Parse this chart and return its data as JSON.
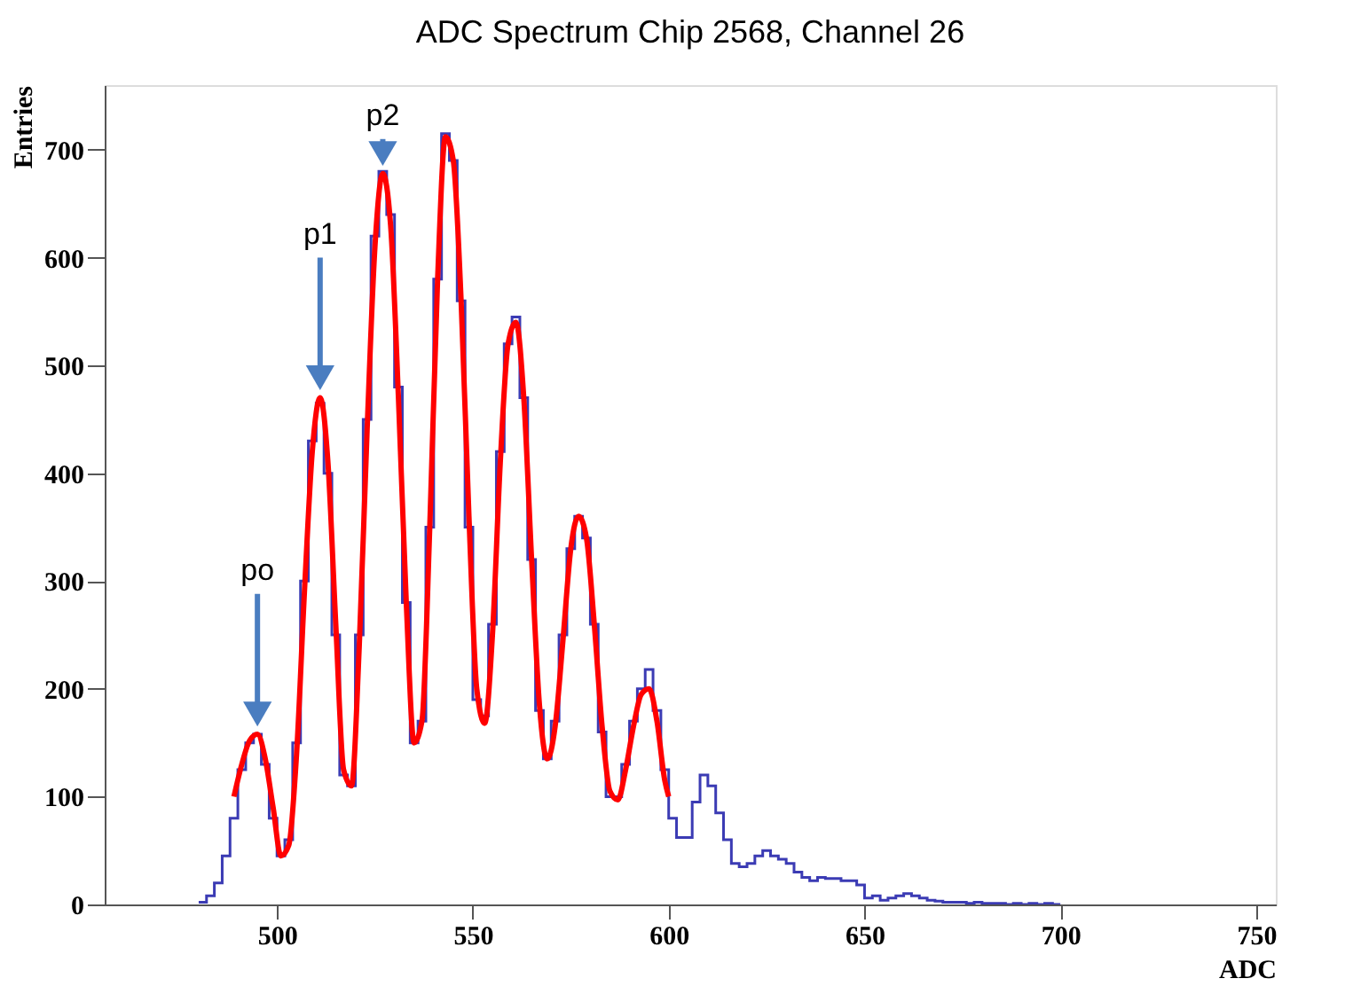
{
  "chart_data": {
    "type": "histogram",
    "title": "ADC Spectrum Chip 2568, Channel 26",
    "xlabel": "ADC",
    "ylabel": "Entries",
    "xlim": [
      456,
      755
    ],
    "ylim": [
      0,
      760
    ],
    "xticks": [
      500,
      550,
      600,
      650,
      700,
      750
    ],
    "yticks": [
      0,
      100,
      200,
      300,
      400,
      500,
      600,
      700
    ],
    "grid": false,
    "series": [
      {
        "color": "#3b3bb4",
        "bins": [
          480,
          482,
          484,
          486,
          488,
          490,
          492,
          494,
          496,
          498,
          500,
          502,
          504,
          506,
          508,
          510,
          512,
          514,
          516,
          518,
          520,
          522,
          524,
          526,
          528,
          530,
          532,
          534,
          536,
          538,
          540,
          542,
          544,
          546,
          548,
          550,
          552,
          554,
          556,
          558,
          560,
          562,
          564,
          566,
          568,
          570,
          572,
          574,
          576,
          578,
          580,
          582,
          584,
          586,
          588,
          590,
          592,
          594,
          596,
          598,
          600,
          602,
          604,
          606,
          608,
          610,
          612,
          614,
          616,
          618,
          620,
          622,
          624,
          626,
          628,
          630,
          632,
          634,
          636,
          638,
          640,
          642,
          644,
          646,
          648,
          650,
          652,
          654,
          656,
          658,
          660,
          662,
          664,
          666,
          668,
          670,
          672,
          674,
          676,
          678,
          680,
          682,
          684,
          686,
          688,
          690,
          692,
          694,
          696,
          698,
          700
        ],
        "values": [
          2,
          8,
          20,
          45,
          80,
          125,
          150,
          158,
          130,
          80,
          45,
          60,
          150,
          300,
          430,
          465,
          400,
          250,
          120,
          110,
          250,
          450,
          620,
          680,
          640,
          480,
          280,
          150,
          170,
          350,
          580,
          715,
          690,
          560,
          350,
          190,
          175,
          260,
          420,
          520,
          545,
          470,
          320,
          180,
          135,
          170,
          250,
          330,
          360,
          340,
          260,
          160,
          100,
          100,
          130,
          170,
          200,
          218,
          180,
          125,
          80,
          62,
          62,
          95,
          120,
          110,
          85,
          60,
          38,
          35,
          38,
          45,
          50,
          45,
          42,
          38,
          30,
          25,
          22,
          25,
          24,
          24,
          22,
          22,
          18,
          6,
          8,
          4,
          6,
          8,
          10,
          8,
          6,
          4,
          3,
          2,
          2,
          2,
          1,
          2,
          1,
          1,
          1,
          0,
          1,
          0,
          1,
          0,
          1,
          0
        ]
      },
      {
        "type": "line",
        "color": "#ff0000",
        "x": [
          489,
          491,
          493,
          495,
          497,
          499,
          501,
          503,
          505,
          507,
          509,
          511,
          513,
          515,
          517,
          519,
          521,
          523,
          525,
          527,
          529,
          531,
          533,
          535,
          537,
          539,
          541,
          543,
          545,
          547,
          549,
          551,
          553,
          555,
          557,
          559,
          561,
          563,
          565,
          567,
          569,
          571,
          573,
          575,
          577,
          579,
          581,
          583,
          585,
          587,
          589,
          591,
          593,
          595,
          597,
          599,
          600
        ],
        "values": [
          100,
          130,
          152,
          158,
          135,
          90,
          45,
          55,
          140,
          290,
          420,
          470,
          410,
          260,
          125,
          110,
          240,
          440,
          610,
          678,
          630,
          470,
          280,
          150,
          170,
          350,
          580,
          712,
          690,
          560,
          360,
          200,
          168,
          250,
          410,
          520,
          540,
          470,
          320,
          185,
          135,
          165,
          245,
          330,
          360,
          340,
          260,
          165,
          105,
          97,
          125,
          165,
          195,
          200,
          170,
          115,
          100
        ]
      }
    ],
    "annotations": [
      {
        "text": "po",
        "x": 495,
        "y": 158
      },
      {
        "text": "p1",
        "x": 511,
        "y": 470
      },
      {
        "text": "p2",
        "x": 527,
        "y": 678
      }
    ]
  }
}
